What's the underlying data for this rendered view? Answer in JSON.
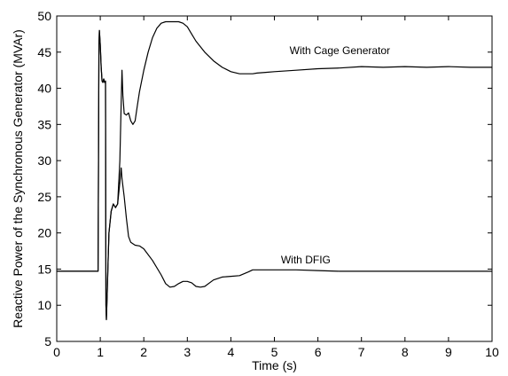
{
  "chart_data": {
    "type": "line",
    "xlabel": "Time (s)",
    "ylabel": "Reactive Power of the Synchronous Generator (MVAr)",
    "xlim": [
      0,
      10
    ],
    "ylim": [
      5,
      50
    ],
    "xticks": [
      "0",
      "1",
      "2",
      "3",
      "4",
      "5",
      "6",
      "7",
      "8",
      "9",
      "10"
    ],
    "yticks": [
      "5",
      "10",
      "15",
      "20",
      "25",
      "30",
      "35",
      "40",
      "45",
      "50"
    ],
    "grid": false,
    "colors": {
      "line": "#000000",
      "axis": "#000000",
      "background": "#ffffff"
    },
    "annotations": [
      {
        "text": "With Cage Generator",
        "x": 5.35,
        "y": 44.7
      },
      {
        "text": "With DFIG",
        "x": 5.15,
        "y": 15.8
      }
    ],
    "series": [
      {
        "name": "With Cage Generator",
        "x": [
          0,
          0.95,
          0.96,
          0.97,
          0.98,
          1.0,
          1.02,
          1.04,
          1.06,
          1.08,
          1.1,
          1.12,
          1.13,
          1.14,
          1.16,
          1.18,
          1.2,
          1.25,
          1.3,
          1.35,
          1.4,
          1.45,
          1.48,
          1.5,
          1.52,
          1.55,
          1.6,
          1.65,
          1.7,
          1.75,
          1.8,
          1.85,
          1.9,
          2.0,
          2.1,
          2.2,
          2.3,
          2.4,
          2.5,
          2.6,
          2.8,
          2.9,
          3.0,
          3.1,
          3.2,
          3.4,
          3.6,
          3.8,
          4.0,
          4.2,
          4.4,
          4.5,
          4.6,
          4.8,
          5.0,
          5.5,
          6.0,
          6.5,
          7.0,
          7.5,
          8.0,
          8.5,
          9.0,
          9.5,
          10.0
        ],
        "y": [
          14.7,
          14.7,
          30,
          46,
          48,
          46,
          43,
          41,
          40.8,
          41.3,
          40.8,
          41,
          10,
          8,
          12,
          16,
          20,
          23,
          24,
          23.5,
          24,
          30,
          38,
          42.5,
          39,
          36.5,
          36.3,
          36.6,
          35.5,
          35,
          35.5,
          37.5,
          39.5,
          42.5,
          45,
          47,
          48.3,
          49,
          49.2,
          49.2,
          49.2,
          49,
          48.5,
          47.5,
          46.5,
          45,
          43.8,
          42.9,
          42.3,
          42,
          42,
          42,
          42.1,
          42.2,
          42.3,
          42.5,
          42.7,
          42.8,
          43,
          42.9,
          43,
          42.9,
          43,
          42.9,
          42.9
        ]
      },
      {
        "name": "With DFIG",
        "x": [
          0,
          0.95,
          0.96,
          0.97,
          0.98,
          1.0,
          1.02,
          1.04,
          1.06,
          1.08,
          1.1,
          1.12,
          1.13,
          1.14,
          1.16,
          1.18,
          1.2,
          1.25,
          1.3,
          1.35,
          1.4,
          1.45,
          1.48,
          1.5,
          1.55,
          1.6,
          1.65,
          1.7,
          1.8,
          1.9,
          2.0,
          2.2,
          2.4,
          2.5,
          2.6,
          2.7,
          2.8,
          2.9,
          3.0,
          3.1,
          3.2,
          3.3,
          3.4,
          3.6,
          3.8,
          4.0,
          4.2,
          4.4,
          4.5,
          4.6,
          5.0,
          5.5,
          6.0,
          6.5,
          7.0,
          7.5,
          8.0,
          8.5,
          9.0,
          9.5,
          10.0
        ],
        "y": [
          14.7,
          14.7,
          30,
          46,
          48,
          46,
          43,
          41,
          40.8,
          41.3,
          40.8,
          41,
          10,
          8,
          12,
          16,
          20,
          23,
          24,
          23.5,
          24,
          27,
          29,
          27.5,
          25,
          22,
          19.5,
          18.7,
          18.3,
          18.2,
          17.8,
          16.2,
          14.2,
          13,
          12.5,
          12.6,
          13,
          13.3,
          13.3,
          13.1,
          12.6,
          12.5,
          12.6,
          13.5,
          13.9,
          14,
          14.1,
          14.6,
          14.9,
          14.9,
          14.9,
          14.9,
          14.8,
          14.7,
          14.7,
          14.7,
          14.7,
          14.7,
          14.7,
          14.7,
          14.7
        ]
      }
    ]
  }
}
